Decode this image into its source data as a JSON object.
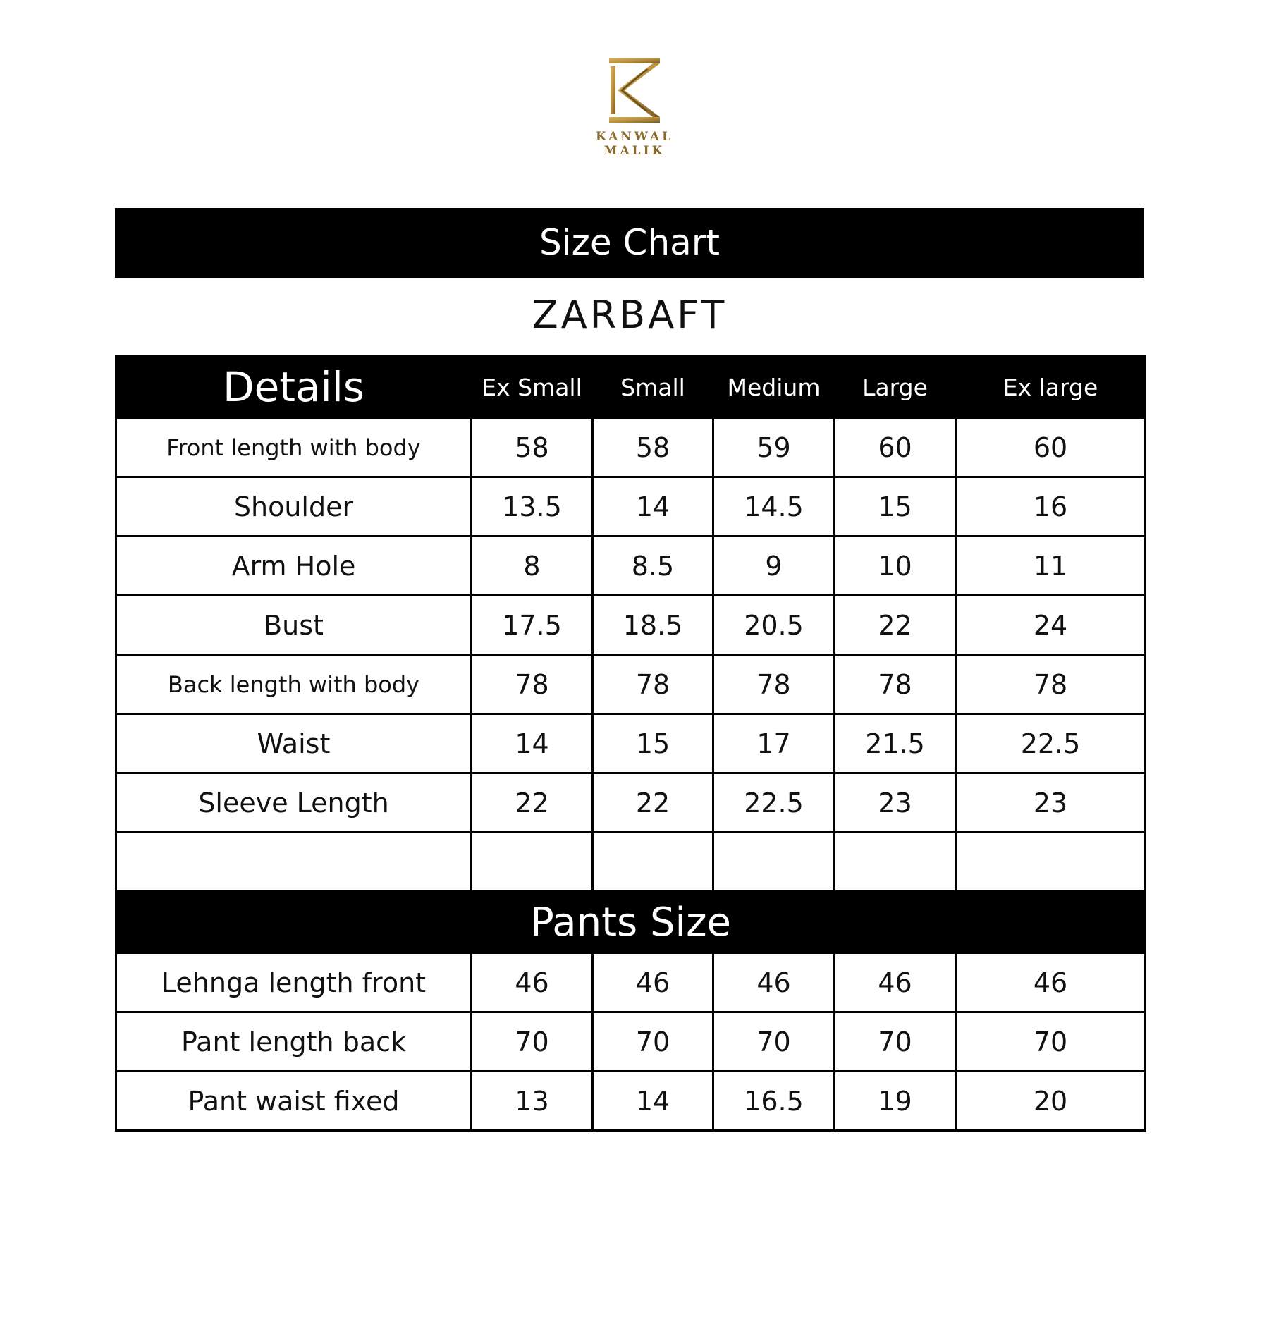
{
  "brand": {
    "name": "KANWAL MALIK",
    "logo_color": "#b8913f"
  },
  "title": "Size Chart",
  "subtitle": "ZARBAFT",
  "header": [
    "Details",
    "Ex Small",
    "Small",
    "Medium",
    "Large",
    "Ex large"
  ],
  "rows": [
    {
      "label": "Front length with body",
      "values": [
        "58",
        "58",
        "59",
        "60",
        "60"
      ]
    },
    {
      "label": "Shoulder",
      "values": [
        "13.5",
        "14",
        "14.5",
        "15",
        "16"
      ]
    },
    {
      "label": "Arm Hole",
      "values": [
        "8",
        "8.5",
        "9",
        "10",
        "11"
      ]
    },
    {
      "label": "Bust",
      "values": [
        "17.5",
        "18.5",
        "20.5",
        "22",
        "24"
      ]
    },
    {
      "label": "Back length with body",
      "values": [
        "78",
        "78",
        "78",
        "78",
        "78"
      ]
    },
    {
      "label": "Waist",
      "values": [
        "14",
        "15",
        "17",
        "21.5",
        "22.5"
      ]
    },
    {
      "label": "Sleeve Length",
      "values": [
        "22",
        "22",
        "22.5",
        "23",
        "23"
      ]
    },
    {
      "label": "",
      "values": [
        "",
        "",
        "",
        "",
        ""
      ]
    }
  ],
  "pants_title": "Pants Size",
  "pants_rows": [
    {
      "label": "Lehnga length front",
      "values": [
        "46",
        "46",
        "46",
        "46",
        "46"
      ]
    },
    {
      "label": "Pant length back",
      "values": [
        "70",
        "70",
        "70",
        "70",
        "70"
      ]
    },
    {
      "label": "Pant waist fixed",
      "values": [
        "13",
        "14",
        "16.5",
        "19",
        "20"
      ]
    }
  ]
}
